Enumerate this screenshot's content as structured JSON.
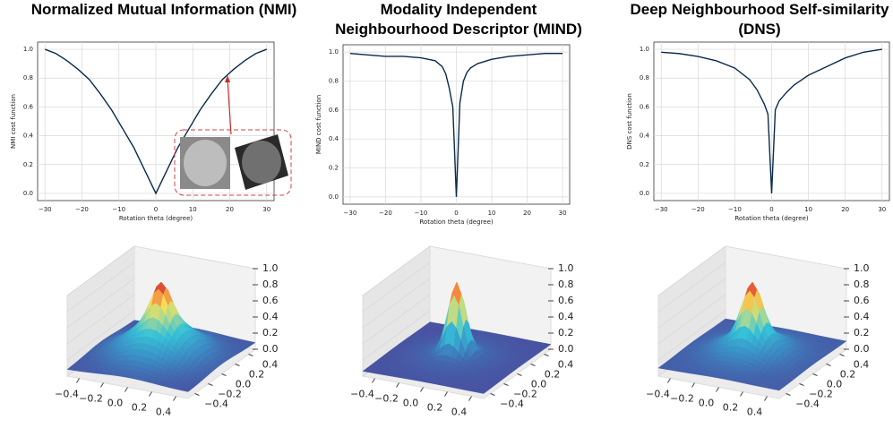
{
  "chart_data": [
    {
      "type": "line",
      "title": "Normalized Mutual Information (NMI)",
      "xlabel": "Rotation theta (degree)",
      "ylabel": "NMI cost function",
      "x": [
        -30,
        -27,
        -24,
        -21,
        -18,
        -15,
        -12,
        -9,
        -6,
        -3,
        0,
        3,
        6,
        9,
        12,
        15,
        18,
        21,
        24,
        27,
        30
      ],
      "series": [
        {
          "color": "#0b2a4a",
          "values": [
            1.0,
            0.97,
            0.92,
            0.86,
            0.79,
            0.69,
            0.58,
            0.45,
            0.32,
            0.16,
            0.0,
            0.16,
            0.32,
            0.45,
            0.58,
            0.69,
            0.79,
            0.86,
            0.92,
            0.97,
            1.0
          ]
        }
      ],
      "xlim": [
        -32,
        32
      ],
      "ylim": [
        -0.05,
        1.05
      ],
      "xticks": [
        {
          "value": -30,
          "label": "−30"
        },
        {
          "value": -20,
          "label": "−20"
        },
        {
          "value": -10,
          "label": "−10"
        },
        0,
        10,
        20,
        30
      ],
      "yticks": [
        {
          "value": 0,
          "label": "0.0"
        },
        0.2,
        0.4,
        0.6,
        0.8,
        {
          "value": 1,
          "label": "1.0"
        }
      ],
      "grid": true
    },
    {
      "type": "line",
      "title": "Modality Independent Neighbourhood Descriptor (MIND)",
      "xlabel": "Rotation theta (degree)",
      "ylabel": "MIND cost function",
      "x": [
        -30,
        -25,
        -20,
        -15,
        -10,
        -6,
        -4,
        -3,
        -2,
        -1,
        0,
        1,
        2,
        3,
        4,
        6,
        10,
        15,
        20,
        25,
        30
      ],
      "series": [
        {
          "color": "#0b2a4a",
          "values": [
            0.99,
            0.98,
            0.97,
            0.97,
            0.96,
            0.94,
            0.9,
            0.85,
            0.75,
            0.62,
            0.0,
            0.65,
            0.8,
            0.86,
            0.89,
            0.92,
            0.95,
            0.97,
            0.98,
            0.99,
            0.99
          ]
        }
      ],
      "xlim": [
        -32,
        32
      ],
      "ylim": [
        -0.05,
        1.05
      ],
      "xticks": [
        {
          "value": -30,
          "label": "−30"
        },
        {
          "value": -20,
          "label": "−20"
        },
        {
          "value": -10,
          "label": "−10"
        },
        0,
        10,
        20,
        30
      ],
      "yticks": [
        {
          "value": 0,
          "label": "0.0"
        },
        0.2,
        0.4,
        0.6,
        0.8,
        {
          "value": 1,
          "label": "1.0"
        }
      ],
      "grid": true
    },
    {
      "type": "line",
      "title": "Deep Neighbourhood Self-similarity (DNS)",
      "xlabel": "Rotation theta (degree)",
      "ylabel": "DNS cost function",
      "x": [
        -30,
        -25,
        -20,
        -15,
        -10,
        -6,
        -4,
        -2,
        -1,
        0,
        1,
        2,
        4,
        6,
        10,
        15,
        20,
        25,
        30
      ],
      "series": [
        {
          "color": "#0b2a4a",
          "values": [
            0.98,
            0.97,
            0.95,
            0.92,
            0.87,
            0.79,
            0.72,
            0.62,
            0.55,
            0.0,
            0.58,
            0.64,
            0.7,
            0.75,
            0.82,
            0.88,
            0.94,
            0.98,
            1.0
          ]
        }
      ],
      "xlim": [
        -32,
        32
      ],
      "ylim": [
        -0.05,
        1.05
      ],
      "xticks": [
        {
          "value": -30,
          "label": "−30"
        },
        {
          "value": -20,
          "label": "−20"
        },
        {
          "value": -10,
          "label": "−10"
        },
        0,
        10,
        20,
        30
      ],
      "yticks": [
        {
          "value": 0,
          "label": "0.0"
        },
        0.2,
        0.4,
        0.6,
        0.8,
        {
          "value": 1,
          "label": "1.0"
        }
      ],
      "grid": true
    },
    {
      "type": "surface",
      "xlim": [
        -0.5,
        0.5
      ],
      "ylim": [
        -0.5,
        0.5
      ],
      "zlim": [
        0,
        1
      ],
      "xticks": [
        {
          "value": -0.4,
          "label": "−0.4"
        },
        {
          "value": -0.2,
          "label": "−0.2"
        },
        {
          "value": 0,
          "label": "0.0"
        },
        0.2,
        0.4
      ],
      "yticks": [
        {
          "value": -0.4,
          "label": "−0.4"
        },
        {
          "value": -0.2,
          "label": "−0.2"
        },
        {
          "value": 0,
          "label": "0.0"
        },
        0.2,
        0.4
      ],
      "zticks": [
        {
          "value": 0,
          "label": "0.0"
        },
        0.2,
        0.4,
        0.6,
        0.8,
        {
          "value": 1,
          "label": "1.0"
        }
      ]
    },
    {
      "type": "surface",
      "xlim": [
        -0.5,
        0.5
      ],
      "ylim": [
        -0.5,
        0.5
      ],
      "zlim": [
        0,
        1
      ],
      "xticks": [
        {
          "value": -0.4,
          "label": "−0.4"
        },
        {
          "value": -0.2,
          "label": "−0.2"
        },
        {
          "value": 0,
          "label": "0.0"
        },
        0.2,
        0.4
      ],
      "yticks": [
        {
          "value": -0.4,
          "label": "−0.4"
        },
        {
          "value": -0.2,
          "label": "−0.2"
        },
        {
          "value": 0,
          "label": "0.0"
        },
        0.2,
        0.4
      ],
      "zticks": [
        {
          "value": 0,
          "label": "0.0"
        },
        0.2,
        0.4,
        0.6,
        0.8,
        {
          "value": 1,
          "label": "1.0"
        }
      ]
    },
    {
      "type": "surface",
      "xlim": [
        -0.5,
        0.5
      ],
      "ylim": [
        -0.5,
        0.5
      ],
      "zlim": [
        0,
        1
      ],
      "xticks": [
        {
          "value": -0.4,
          "label": "−0.4"
        },
        {
          "value": -0.2,
          "label": "−0.2"
        },
        {
          "value": 0,
          "label": "0.0"
        },
        0.2,
        0.4
      ],
      "yticks": [
        {
          "value": -0.4,
          "label": "−0.4"
        },
        {
          "value": -0.2,
          "label": "−0.2"
        },
        {
          "value": 0,
          "label": "0.0"
        },
        0.2,
        0.4
      ],
      "zticks": [
        {
          "value": 0,
          "label": "0.0"
        },
        0.2,
        0.4,
        0.6,
        0.8,
        {
          "value": 1,
          "label": "1.0"
        }
      ]
    }
  ]
}
